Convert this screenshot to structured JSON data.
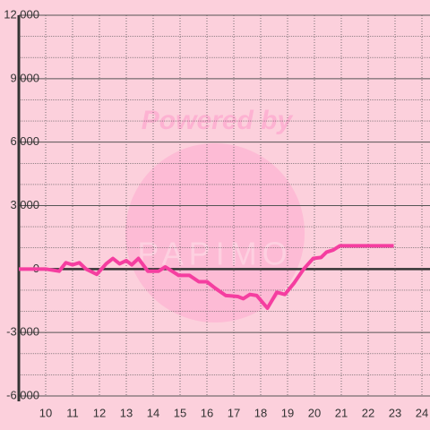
{
  "chart_data": {
    "type": "line",
    "watermark": {
      "top": "Powered by",
      "brand": "PAPIMO"
    },
    "x": [
      9.0,
      10.0,
      10.5,
      10.75,
      11.0,
      11.25,
      11.5,
      11.9,
      12.25,
      12.5,
      12.75,
      13.0,
      13.2,
      13.45,
      13.8,
      14.2,
      14.45,
      14.95,
      15.35,
      15.7,
      16.0,
      16.3,
      16.7,
      17.15,
      17.35,
      17.6,
      17.85,
      18.25,
      18.6,
      18.9,
      19.25,
      19.6,
      19.95,
      20.25,
      20.45,
      20.7,
      20.95,
      21.6,
      22.95
    ],
    "series": [
      {
        "color": "#f53ea0",
        "values": [
          0,
          0,
          -100,
          300,
          200,
          300,
          0,
          -250,
          250,
          500,
          250,
          400,
          200,
          500,
          -100,
          -100,
          100,
          -300,
          -300,
          -600,
          -600,
          -900,
          -1250,
          -1300,
          -1400,
          -1200,
          -1250,
          -1850,
          -1100,
          -1200,
          -650,
          0,
          500,
          550,
          800,
          900,
          1100,
          1100,
          1100
        ]
      }
    ],
    "xlim": [
      9,
      24.3
    ],
    "xticks": [
      10,
      11,
      12,
      13,
      14,
      15,
      16,
      17,
      18,
      19,
      20,
      21,
      22,
      23,
      24
    ],
    "ylim": [
      -6000,
      12000
    ],
    "yticks": [
      {
        "value": -6000,
        "label": "-6,000"
      },
      {
        "value": -3000,
        "label": "-3,000"
      },
      0,
      {
        "value": 3000,
        "label": "3,000"
      },
      {
        "value": 6000,
        "label": "6,000"
      },
      {
        "value": 9000,
        "label": "9,000"
      },
      {
        "value": 12000,
        "label": "12,000"
      }
    ],
    "yminor": [
      -5000,
      -4000,
      -2000,
      -1000,
      1000,
      2000,
      4000,
      5000,
      7000,
      8000,
      10000,
      11000
    ],
    "grid": true
  }
}
